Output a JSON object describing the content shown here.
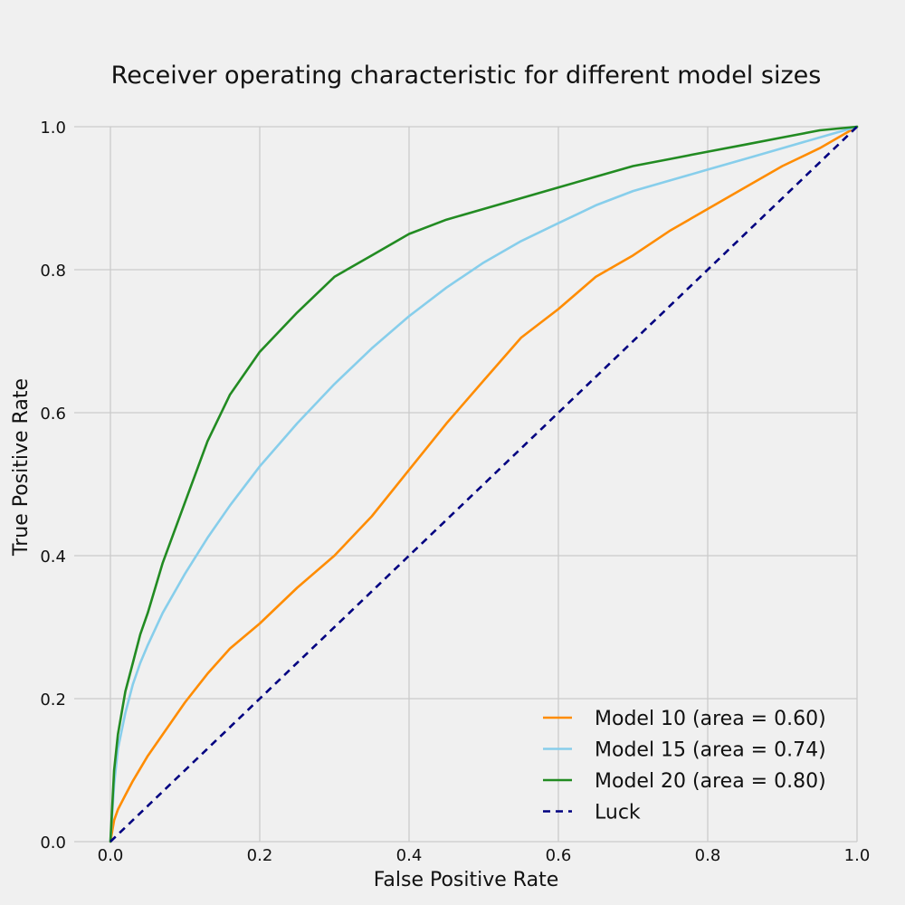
{
  "chart_data": {
    "type": "line",
    "title": "Receiver operating characteristic for different model sizes",
    "xlabel": "False Positive Rate",
    "ylabel": "True Positive Rate",
    "xlim": [
      0.0,
      1.0
    ],
    "ylim": [
      0.0,
      1.0
    ],
    "xticks": [
      "0.0",
      "0.2",
      "0.4",
      "0.6",
      "0.8",
      "1.0"
    ],
    "yticks": [
      "0.0",
      "0.2",
      "0.4",
      "0.6",
      "0.8",
      "1.0"
    ],
    "grid": true,
    "legend_position": "bottom-right",
    "series": [
      {
        "name": "Model 10 (area = 0.60)",
        "color": "#ff8c00",
        "dash": "solid",
        "x": [
          0.0,
          0.005,
          0.01,
          0.02,
          0.03,
          0.05,
          0.07,
          0.1,
          0.13,
          0.16,
          0.2,
          0.25,
          0.3,
          0.35,
          0.4,
          0.45,
          0.5,
          0.55,
          0.6,
          0.65,
          0.7,
          0.75,
          0.8,
          0.85,
          0.9,
          0.95,
          1.0
        ],
        "y": [
          0.0,
          0.03,
          0.045,
          0.065,
          0.085,
          0.12,
          0.15,
          0.195,
          0.235,
          0.27,
          0.305,
          0.355,
          0.4,
          0.455,
          0.52,
          0.585,
          0.645,
          0.705,
          0.745,
          0.79,
          0.82,
          0.855,
          0.885,
          0.915,
          0.945,
          0.97,
          1.0
        ]
      },
      {
        "name": "Model 15 (area = 0.74)",
        "color": "#87ceeb",
        "dash": "solid",
        "x": [
          0.0,
          0.005,
          0.01,
          0.02,
          0.03,
          0.04,
          0.05,
          0.07,
          0.1,
          0.13,
          0.16,
          0.2,
          0.25,
          0.3,
          0.35,
          0.4,
          0.45,
          0.5,
          0.55,
          0.6,
          0.65,
          0.7,
          0.75,
          0.8,
          0.85,
          0.9,
          0.95,
          1.0
        ],
        "y": [
          0.0,
          0.08,
          0.13,
          0.18,
          0.22,
          0.25,
          0.275,
          0.32,
          0.375,
          0.425,
          0.47,
          0.525,
          0.585,
          0.64,
          0.69,
          0.735,
          0.775,
          0.81,
          0.84,
          0.865,
          0.89,
          0.91,
          0.925,
          0.94,
          0.955,
          0.97,
          0.985,
          1.0
        ]
      },
      {
        "name": "Model 20 (area = 0.80)",
        "color": "#228b22",
        "dash": "solid",
        "x": [
          0.0,
          0.005,
          0.01,
          0.02,
          0.03,
          0.04,
          0.05,
          0.07,
          0.1,
          0.13,
          0.16,
          0.2,
          0.25,
          0.3,
          0.35,
          0.4,
          0.45,
          0.5,
          0.55,
          0.6,
          0.65,
          0.7,
          0.75,
          0.8,
          0.85,
          0.9,
          0.95,
          1.0
        ],
        "y": [
          0.0,
          0.1,
          0.15,
          0.21,
          0.25,
          0.29,
          0.32,
          0.39,
          0.475,
          0.56,
          0.625,
          0.685,
          0.74,
          0.79,
          0.82,
          0.85,
          0.87,
          0.885,
          0.9,
          0.915,
          0.93,
          0.945,
          0.955,
          0.965,
          0.975,
          0.985,
          0.995,
          1.0
        ]
      },
      {
        "name": "Luck",
        "color": "#000080",
        "dash": "dashed",
        "x": [
          0.0,
          1.0
        ],
        "y": [
          0.0,
          1.0
        ]
      }
    ]
  }
}
